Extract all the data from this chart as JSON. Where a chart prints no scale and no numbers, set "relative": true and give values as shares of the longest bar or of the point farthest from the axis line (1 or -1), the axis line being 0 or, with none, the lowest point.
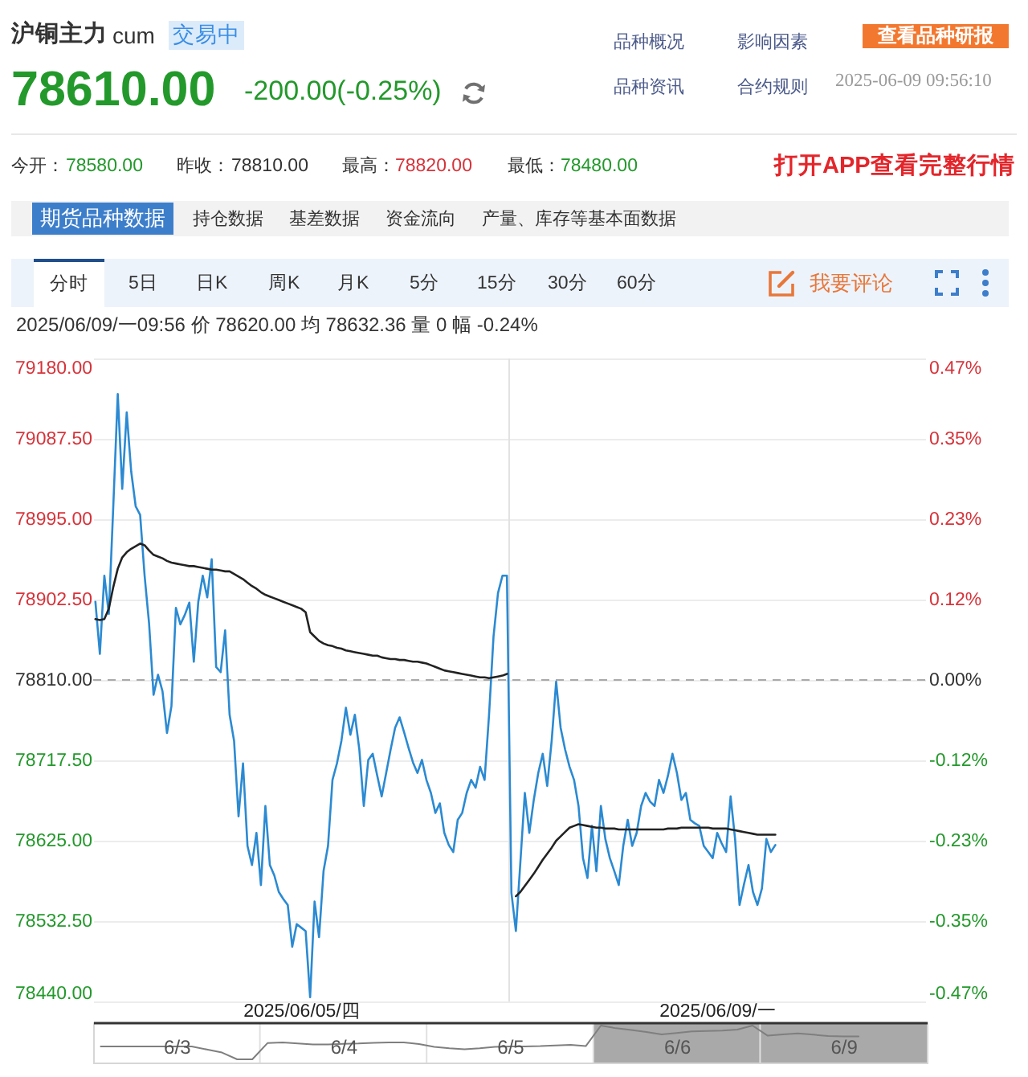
{
  "chart_data": [
    {
      "type": "line",
      "title": "沪铜主力",
      "subtitle": "cum",
      "annotations": [
        "交易中",
        "品种概况",
        "影响因素",
        "查看品种研报",
        "78610.00",
        "-200.00(-0.25%)",
        "品种资讯",
        "合约规则",
        "2025-06-09 09:56:10",
        "今开：",
        "78580.00",
        "昨收：",
        "78810.00",
        "最高：",
        "78820.00",
        "最低：",
        "78480.00",
        "打开APP查看完整行情",
        "期货品种数据",
        "持仓数据",
        "基差数据",
        "资金流向",
        "产量、库存等基本面数据",
        "分时",
        "5日",
        "日K",
        "周K",
        "月K",
        "5分",
        "15分",
        "30分",
        "60分",
        "我要评论",
        "2025/06/09/一09:56 价 78620.00 均 78632.36 量 0 幅 -0.24%"
      ],
      "categories": [
        null,
        null,
        null,
        null,
        null,
        null,
        null,
        null,
        null,
        null,
        null,
        null,
        null,
        null,
        null,
        null,
        null,
        null,
        null,
        null,
        null,
        null,
        null,
        null,
        null,
        null,
        null,
        null,
        null,
        null,
        null,
        null,
        null,
        null,
        null,
        null,
        null,
        null,
        null,
        null,
        null,
        null,
        null,
        null,
        null,
        null,
        "2025/06/05/四",
        null,
        null,
        null,
        null,
        null,
        null,
        null,
        null,
        null,
        null,
        null,
        null,
        null,
        null,
        null,
        null,
        null,
        null,
        null,
        null,
        null,
        null,
        null,
        null,
        null,
        null,
        null,
        null,
        null,
        null,
        null,
        null,
        null,
        null,
        null,
        null,
        null,
        null,
        null,
        null,
        null,
        null,
        null,
        null,
        null,
        null,
        null,
        null,
        null,
        null,
        null,
        null,
        null,
        null,
        null,
        null,
        null,
        null,
        null,
        null,
        null,
        null,
        null,
        null,
        null,
        null,
        null,
        null,
        null,
        null,
        null,
        null,
        null,
        null,
        null,
        null,
        null,
        null,
        null,
        null,
        null,
        null,
        null,
        null,
        null,
        null,
        null,
        null,
        null,
        null,
        null,
        null,
        "2025/06/09/一",
        null,
        null,
        null,
        null,
        null,
        null,
        null,
        null,
        null,
        null,
        null,
        null,
        null,
        null,
        null,
        null,
        null,
        null,
        null,
        null,
        null,
        null,
        null,
        null,
        null,
        null,
        null,
        null,
        null,
        null,
        null,
        null,
        null,
        null,
        null,
        null,
        null,
        null,
        null,
        null,
        null,
        null,
        null,
        null,
        null,
        null
      ],
      "ylim": [
        78440,
        79180
      ],
      "yticks": [
        {
          "value": 78440,
          "label": "78440.00"
        },
        {
          "value": 78532.5,
          "label": "78532.50"
        },
        {
          "value": 78625,
          "label": "78625.00"
        },
        {
          "value": 78717.5,
          "label": "78717.50"
        },
        {
          "value": 78810,
          "label": "78810.00"
        },
        {
          "value": 78902.5,
          "label": "78902.50"
        },
        {
          "value": 78995,
          "label": "78995.00"
        },
        {
          "value": 79087.5,
          "label": "79087.50"
        },
        {
          "value": 79180,
          "label": "79180.00"
        }
      ],
      "y2lim": [
        -0.4695,
        0.4695
      ],
      "y2ticks": [
        {
          "value": -0.4695,
          "label": "-0.47%"
        },
        {
          "value": -0.3521,
          "label": "-0.35%"
        },
        {
          "value": -0.2347,
          "label": "-0.23%"
        },
        {
          "value": -0.1174,
          "label": "-0.12%"
        },
        {
          "value": 0,
          "label": "0.00%"
        },
        {
          "value": 0.1174,
          "label": "0.12%"
        },
        {
          "value": 0.2347,
          "label": "0.23%"
        },
        {
          "value": 0.3521,
          "label": "0.35%"
        },
        {
          "value": 0.4695,
          "label": "0.47%"
        }
      ],
      "grid": "y",
      "ref_lines": [
        {
          "axis": "y",
          "value": 78810,
          "line_style": "dashed",
          "color": "#aaaaaa"
        }
      ],
      "series": [
        {
          "color": "#2b8ad2",
          "values": [
            78900,
            78840,
            78930,
            78886,
            79010,
            79139,
            79030,
            79118,
            79050,
            79010,
            79000,
            78930,
            78875,
            78793,
            78816,
            78797,
            78749,
            78780,
            78893,
            78874,
            78885,
            78899,
            78831,
            78900,
            78930,
            78905,
            78949,
            78825,
            78819,
            78867,
            78770,
            78740,
            78653,
            78714,
            78619,
            78597,
            78634,
            78574,
            78665,
            78597,
            78585,
            78566,
            78558,
            78551,
            78503,
            78529,
            78525,
            78521,
            78445,
            78555,
            78514,
            78590,
            78619,
            78695,
            78714,
            78740,
            78778,
            78747,
            78770,
            78730,
            78665,
            78718,
            78725,
            78700,
            78676,
            78703,
            78730,
            78755,
            78767,
            78750,
            78732,
            78715,
            78703,
            78718,
            78695,
            78680,
            78657,
            78668,
            78634,
            78620,
            78612,
            78649,
            78657,
            78680,
            78695,
            78686,
            78710,
            78695,
            78770,
            78860,
            78910,
            78930,
            78930,
            78565,
            78521,
            78600,
            78680,
            78634,
            78672,
            78703,
            78725,
            78688,
            78740,
            78808,
            78755,
            78730,
            78710,
            78695,
            78665,
            78605,
            78582,
            78642,
            78590,
            78665,
            78627,
            78605,
            78590,
            78574,
            78619,
            78649,
            78619,
            78634,
            78665,
            78680,
            78670,
            78665,
            78695,
            78680,
            78700,
            78725,
            78703,
            78672,
            78680,
            78649,
            78645,
            78642,
            78619,
            78612,
            78605,
            78634,
            78622,
            78612,
            78676,
            78627,
            78551,
            78575,
            78597,
            78566,
            78551,
            78570,
            78627,
            78612,
            78620,
            null,
            null,
            null,
            null,
            null,
            null,
            null,
            null,
            null,
            null,
            null,
            null,
            null,
            null,
            null,
            null,
            null,
            null,
            null,
            null,
            null,
            null,
            null,
            null,
            null,
            null,
            null,
            null,
            null,
            null,
            null,
            null,
            null
          ]
        },
        {
          "color": "#222222",
          "values": [
            78880,
            78879,
            78880,
            78892,
            78917,
            78938,
            78951,
            78957,
            78961,
            78964,
            78967,
            78965,
            78959,
            78954,
            78952,
            78950,
            78947,
            78945,
            78944,
            78943,
            78942,
            78941,
            78941,
            78940,
            78939,
            78938,
            78937,
            78937,
            78936,
            78935,
            78935,
            78932,
            78929,
            78926,
            78922,
            78918,
            78915,
            78911,
            78908,
            78906,
            78904,
            78902,
            78900,
            78898,
            78896,
            78894,
            78892,
            78888,
            78865,
            78860,
            78855,
            78852,
            78850,
            78849,
            78847,
            78846,
            78844,
            78843,
            78842,
            78841,
            78840,
            78839,
            78838,
            78838,
            78836,
            78835,
            78834,
            78834,
            78833,
            78833,
            78832,
            78831,
            78831,
            78830,
            78829,
            78827,
            78825,
            78823,
            78821,
            78820,
            78819,
            78818,
            78817,
            78816,
            78815,
            78814,
            78813,
            78813,
            78812,
            78813,
            78814,
            78815,
            78817,
            null,
            78561,
            78566,
            78573,
            78580,
            78587,
            78595,
            78603,
            78610,
            78617,
            78625,
            78630,
            78635,
            78640,
            78642,
            78644,
            78643,
            78642,
            78641,
            78640,
            78640,
            78639,
            78639,
            78639,
            78638,
            78638,
            78638,
            78638,
            78638,
            78638,
            78638,
            78638,
            78638,
            78638,
            78638,
            78639,
            78639,
            78639,
            78640,
            78640,
            78640,
            78640,
            78640,
            78640,
            78640,
            78639,
            78639,
            78639,
            78639,
            78638,
            78637,
            78636,
            78635,
            78634,
            78633,
            78632,
            78632,
            78632,
            78632,
            78632,
            null,
            null,
            null,
            null,
            null,
            null,
            null,
            null,
            null,
            null,
            null,
            null,
            null,
            null,
            null,
            null,
            null,
            null,
            null,
            null,
            null,
            null,
            null,
            null,
            null,
            null,
            null,
            null,
            null,
            null,
            null,
            null,
            null
          ]
        }
      ]
    },
    {
      "type": "line",
      "relative": true,
      "tick_labels": "x",
      "categories": [
        null,
        null,
        null,
        null,
        null,
        "6/3",
        null,
        null,
        null,
        null,
        null,
        null,
        null,
        null,
        null,
        null,
        "6/4",
        null,
        null,
        null,
        null,
        null,
        null,
        null,
        null,
        null,
        null,
        "6/5",
        null,
        null,
        null,
        null,
        null,
        null,
        null,
        null,
        null,
        null,
        "6/6",
        null,
        null,
        null,
        null,
        null,
        null,
        null,
        null,
        null,
        null,
        "6/9",
        null,
        null,
        null,
        null,
        null
      ],
      "series": [
        {
          "color": "#7f7f7f",
          "values": [
            0.38,
            0.38,
            0.38,
            0.38,
            0.38,
            0.38,
            0.38,
            0.29,
            0.2,
            0,
            0,
            0.48,
            0.5,
            0.47,
            0.44,
            0.44,
            0.46,
            0.47,
            0.49,
            0.5,
            0.5,
            0.45,
            0.37,
            0.33,
            0.3,
            0.33,
            0.37,
            0.38,
            0.38,
            0.39,
            0.41,
            0.43,
            0.39,
            1,
            0.92,
            0.87,
            0.81,
            0.74,
            0.78,
            0.83,
            0.84,
            0.85,
            0.88,
            1,
            0.7,
            0.74,
            0.77,
            0.73,
            0.69,
            0.68,
            0.68,
            null,
            null,
            null,
            null
          ]
        }
      ]
    }
  ]
}
